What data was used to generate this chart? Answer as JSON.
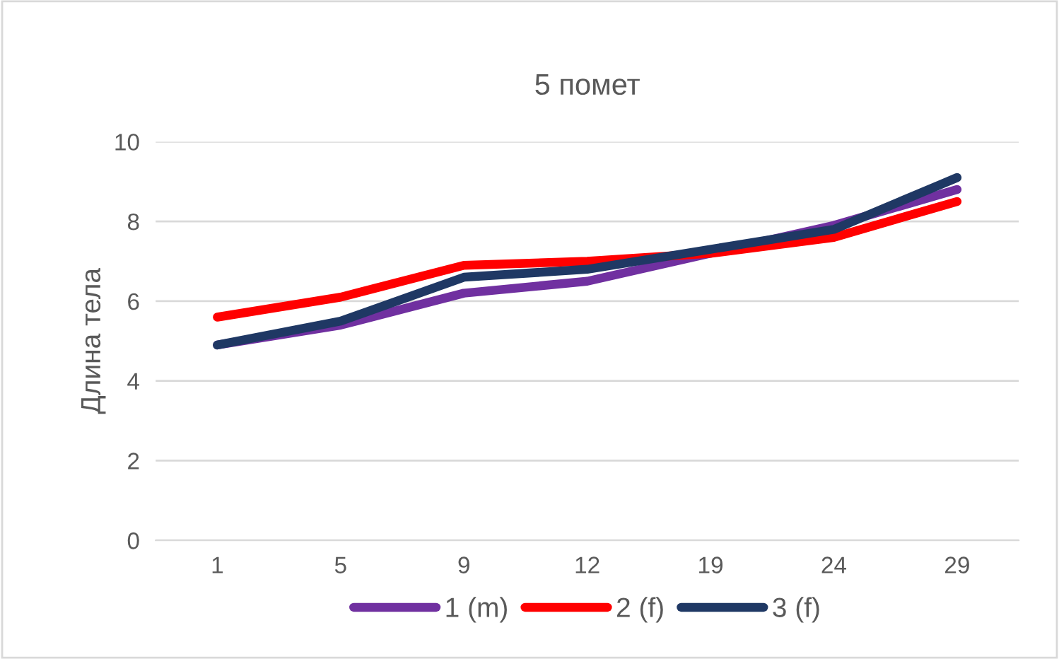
{
  "chart_data": {
    "type": "line",
    "title": "5 помет",
    "ylabel": "Длина тела",
    "categories": [
      "1",
      "5",
      "9",
      "12",
      "19",
      "24",
      "29"
    ],
    "series": [
      {
        "name": "1 (m)",
        "color": "#7030a0",
        "values": [
          4.9,
          5.4,
          6.2,
          6.5,
          7.2,
          7.9,
          8.8
        ]
      },
      {
        "name": "2 (f)",
        "color": "#ff0000",
        "values": [
          5.6,
          6.1,
          6.9,
          7.0,
          7.2,
          7.6,
          8.5
        ]
      },
      {
        "name": "3 (f)",
        "color": "#1f3864",
        "values": [
          4.9,
          5.5,
          6.6,
          6.8,
          7.3,
          7.8,
          9.1
        ]
      }
    ],
    "ylim": [
      0,
      10
    ],
    "yticks": [
      0,
      2,
      4,
      6,
      8,
      10
    ],
    "grid": "y",
    "legend": "bottom",
    "marker": "none",
    "line_style": "solid"
  }
}
